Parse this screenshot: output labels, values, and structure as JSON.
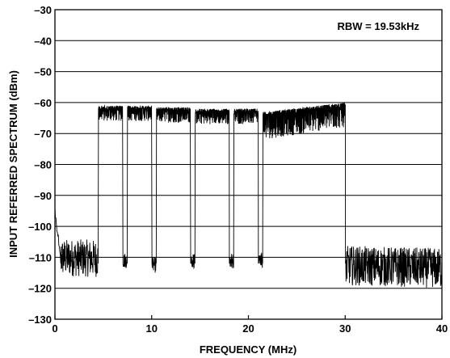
{
  "chart_data": {
    "type": "line",
    "title": "",
    "xlabel": "FREQUENCY (MHz)",
    "ylabel": "INPUT REFERRED SPECTRUM (dBm)",
    "xlim": [
      0,
      40
    ],
    "ylim": [
      -130,
      -30
    ],
    "x_ticks": [
      0,
      10,
      20,
      30,
      40
    ],
    "y_ticks": [
      -30,
      -40,
      -50,
      -60,
      -70,
      -80,
      -90,
      -100,
      -110,
      -120,
      -130
    ],
    "y_tick_labels": [
      "–30",
      "–40",
      "–50",
      "–60",
      "–70",
      "–80",
      "–90",
      "–100",
      "–110",
      "–120",
      "–130"
    ],
    "grid": "horizontal",
    "annotation": "RBW = 19.53kHz",
    "series": [
      {
        "noise_floor_low_dbm": [
          -116,
          -104
        ],
        "noise_floor_high_dbm": [
          -120,
          -107
        ],
        "bands_mhz": [
          {
            "start": 4.5,
            "end": 7.0,
            "top": -61,
            "bottom": -66
          },
          {
            "start": 7.5,
            "end": 10.0,
            "top": -61,
            "bottom": -66
          },
          {
            "start": 10.5,
            "end": 14.0,
            "top": -61.5,
            "bottom": -66.5
          },
          {
            "start": 14.5,
            "end": 18.0,
            "top": -62,
            "bottom": -67
          },
          {
            "start": 18.5,
            "end": 21.0,
            "top": -62,
            "bottom": -67
          },
          {
            "start": 21.5,
            "end": 30.0,
            "top": -63,
            "bottom": -72
          }
        ],
        "notch_dips_mhz": [
          7.2,
          10.2,
          14.2,
          18.2,
          21.2
        ]
      }
    ]
  }
}
